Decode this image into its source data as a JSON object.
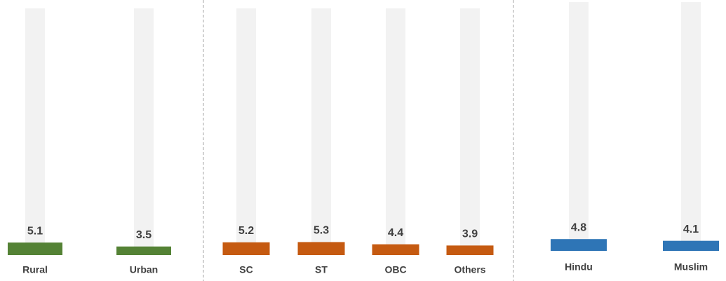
{
  "chart_data": {
    "type": "bar",
    "categories": [
      "Rural",
      "Urban",
      "SC",
      "ST",
      "OBC",
      "Others",
      "Hindu",
      "Muslim"
    ],
    "values": [
      5.1,
      3.5,
      5.2,
      5.3,
      4.4,
      3.9,
      4.8,
      4.1
    ],
    "colors": [
      "#548235",
      "#548235",
      "#c55a11",
      "#c55a11",
      "#c55a11",
      "#c55a11",
      "#2e75b6",
      "#2e75b6"
    ],
    "ylim": [
      0,
      100
    ]
  }
}
